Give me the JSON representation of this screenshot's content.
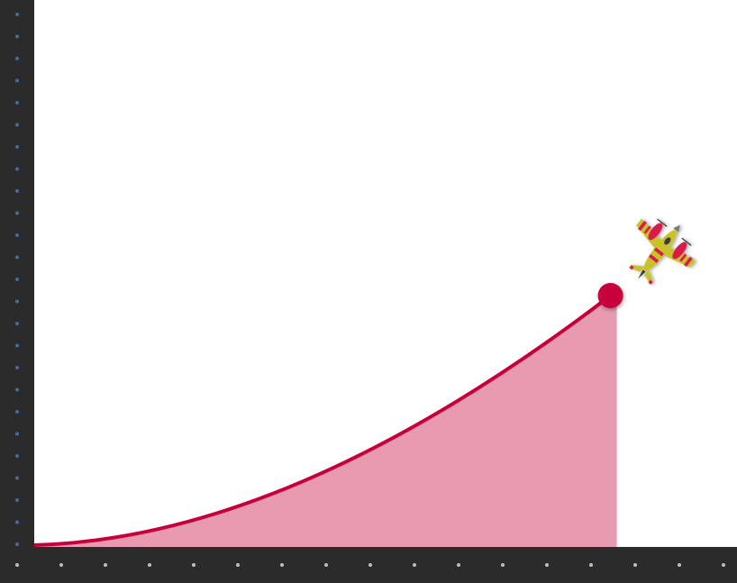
{
  "game": {
    "type": "crash-multiplier",
    "progress_fraction": 0.82
  },
  "colors": {
    "background": "#ffffff",
    "axis_bar": "#2b2b2b",
    "y_axis_dots": "#3a6fa8",
    "x_axis_dots": "#bfbfbf",
    "curve": "#c8003a",
    "curve_fill": "#e79ab0",
    "endpoint_dot": "#c8003a",
    "plane_body": "#c9c22a",
    "plane_accent": "#d81f48"
  },
  "icons": {
    "plane": "airplane-icon",
    "endpoint": "curve-endpoint-dot"
  }
}
